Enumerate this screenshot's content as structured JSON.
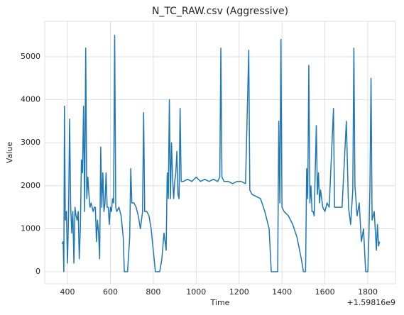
{
  "chart_data": {
    "type": "line",
    "title": "N_TC_RAW.csv (Aggressive)",
    "x_label": "Time",
    "y_label": "Value",
    "x_offset_label": "+1.59816e9",
    "x": [
      375,
      380,
      383,
      386,
      390,
      395,
      400,
      405,
      410,
      415,
      420,
      425,
      430,
      435,
      440,
      445,
      450,
      455,
      460,
      465,
      470,
      475,
      480,
      485,
      490,
      495,
      500,
      505,
      510,
      515,
      520,
      525,
      530,
      535,
      540,
      545,
      550,
      555,
      560,
      565,
      570,
      575,
      580,
      585,
      590,
      595,
      600,
      605,
      610,
      615,
      620,
      625,
      630,
      640,
      650,
      660,
      665,
      680,
      690,
      695,
      700,
      710,
      720,
      730,
      740,
      750,
      755,
      760,
      770,
      780,
      790,
      800,
      810,
      830,
      840,
      850,
      860,
      865,
      870,
      875,
      880,
      885,
      890,
      895,
      900,
      905,
      910,
      915,
      920,
      925,
      930,
      940,
      960,
      980,
      1000,
      1020,
      1040,
      1060,
      1080,
      1100,
      1110,
      1115,
      1120,
      1130,
      1150,
      1170,
      1190,
      1210,
      1230,
      1245,
      1250,
      1260,
      1280,
      1300,
      1320,
      1340,
      1350,
      1380,
      1385,
      1390,
      1395,
      1400,
      1410,
      1430,
      1450,
      1470,
      1490,
      1500,
      1510,
      1515,
      1520,
      1525,
      1530,
      1535,
      1540,
      1545,
      1550,
      1560,
      1565,
      1570,
      1575,
      1580,
      1590,
      1600,
      1610,
      1620,
      1640,
      1645,
      1660,
      1680,
      1700,
      1710,
      1720,
      1730,
      1735,
      1740,
      1750,
      1760,
      1770,
      1780,
      1790,
      1800,
      1805,
      1810,
      1815,
      1820,
      1830,
      1840,
      1845,
      1850,
      1855
    ],
    "series": [
      {
        "name": "N_TC_RAW",
        "color": "#1f77b4",
        "values": [
          650,
          700,
          0,
          3850,
          1200,
          1400,
          200,
          1300,
          3550,
          1500,
          900,
          1400,
          200,
          1500,
          1300,
          1200,
          1400,
          300,
          1000,
          2600,
          2300,
          3850,
          1400,
          5200,
          1700,
          2200,
          1800,
          1500,
          1600,
          1500,
          1400,
          1500,
          1500,
          700,
          1200,
          900,
          300,
          2900,
          1500,
          2300,
          1400,
          1600,
          2300,
          1500,
          1500,
          1100,
          1500,
          1400,
          1700,
          1600,
          5500,
          1500,
          1400,
          1500,
          1300,
          800,
          0,
          0,
          800,
          2400,
          1600,
          1600,
          1500,
          1300,
          1000,
          1400,
          3700,
          1400,
          1400,
          1300,
          1000,
          500,
          0,
          0,
          300,
          900,
          500,
          2300,
          1700,
          4000,
          1700,
          3000,
          2200,
          1700,
          2100,
          2300,
          2800,
          1800,
          1700,
          3800,
          2100,
          2100,
          2150,
          2100,
          2200,
          2100,
          2150,
          2100,
          2150,
          2100,
          2200,
          5200,
          2200,
          2100,
          2100,
          2050,
          2100,
          2100,
          2050,
          5150,
          1900,
          1800,
          1750,
          1700,
          1400,
          1000,
          0,
          0,
          3500,
          1600,
          5400,
          1500,
          1400,
          1300,
          1100,
          800,
          300,
          0,
          0,
          2400,
          1700,
          4800,
          1600,
          2000,
          1400,
          1400,
          1300,
          3400,
          1800,
          2300,
          1600,
          1900,
          1500,
          1400,
          1600,
          1500,
          3800,
          1500,
          1500,
          1500,
          3500,
          1500,
          1100,
          1900,
          5200,
          2000,
          1300,
          1600,
          700,
          1000,
          0,
          0,
          800,
          2000,
          4500,
          1200,
          1400,
          500,
          1100,
          600,
          700
        ]
      }
    ],
    "xlim": [
      294,
      1929
    ],
    "xticks": [
      400,
      600,
      800,
      1000,
      1200,
      1400,
      1600,
      1800
    ],
    "ylim": [
      -280,
      5825
    ],
    "yticks": [
      0,
      1000,
      2000,
      3000,
      4000,
      5000
    ],
    "grid": true
  }
}
